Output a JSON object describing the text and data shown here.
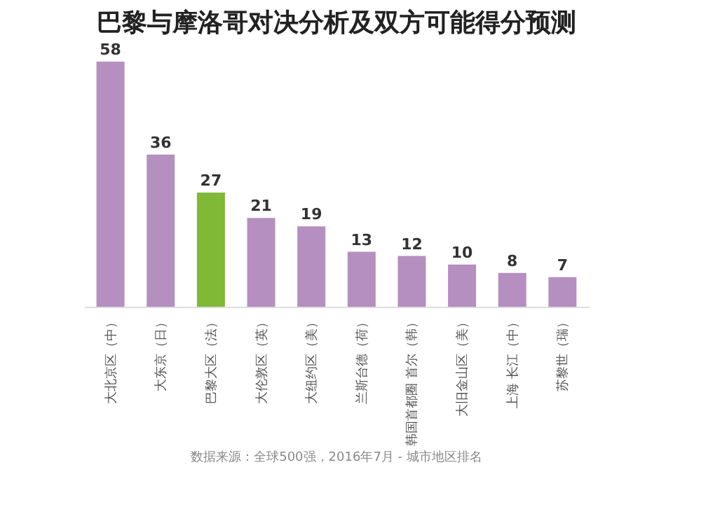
{
  "chart_data": {
    "type": "bar",
    "title": "巴黎与摩洛哥对决分析及双方可能得分预测",
    "categories": [
      "大北京区（中）",
      "大东京（日）",
      "巴黎大区（法）",
      "大伦敦区（英）",
      "大纽约区（美）",
      "兰斯台德（荷）",
      "韩国首都圈 首尔（韩）",
      "大旧金山区（美）",
      "上海 长江（中）",
      "苏黎世（瑞）"
    ],
    "values": [
      58,
      36,
      27,
      21,
      19,
      13,
      12,
      10,
      8,
      7
    ],
    "colors": [
      "#b48fc0",
      "#b48fc0",
      "#7fb935",
      "#b48fc0",
      "#b48fc0",
      "#b48fc0",
      "#b48fc0",
      "#b48fc0",
      "#b48fc0",
      "#b48fc0"
    ],
    "data_labels": true,
    "annotations": [
      "数据来源：全球500强，2016年7月 - 城市地区排名"
    ]
  }
}
